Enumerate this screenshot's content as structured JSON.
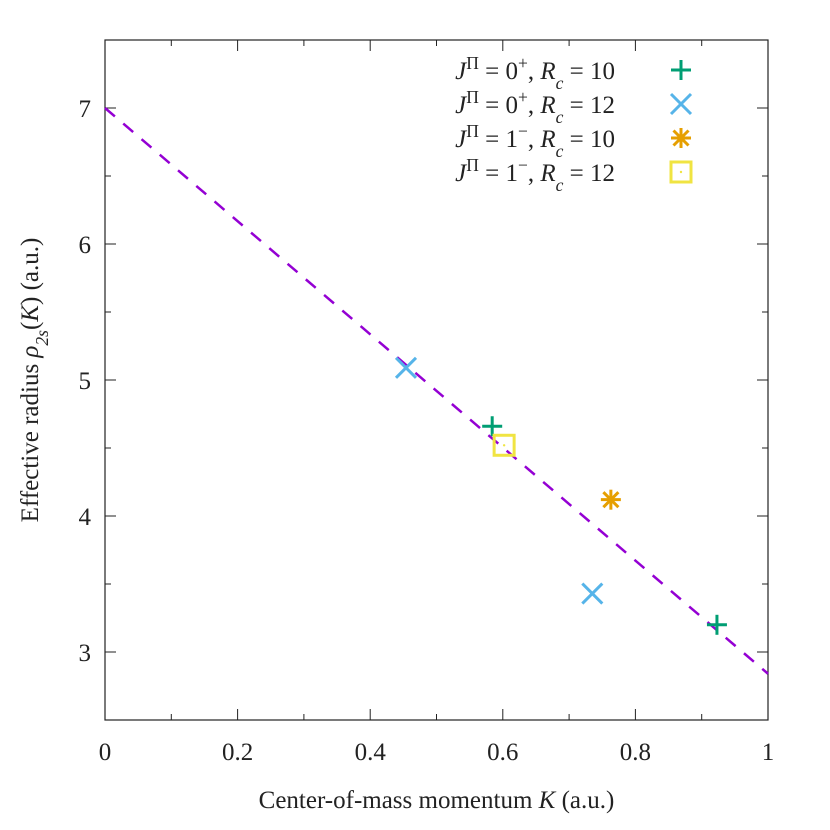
{
  "chart_data": {
    "type": "scatter",
    "xlabel": "Center-of-mass momentum K (a.u.)",
    "xlabel_parts": [
      [
        "Center-of-mass momentum ",
        ""
      ],
      [
        "K",
        "i"
      ],
      [
        " (a.u.)",
        ""
      ]
    ],
    "ylabel": "Effective radius ρ2s(K) (a.u.)",
    "ylabel_parts": [
      [
        "Effective radius ",
        ""
      ],
      [
        "ρ",
        "i"
      ],
      [
        "2s",
        "sub"
      ],
      [
        "(",
        ""
      ],
      [
        "K",
        "i"
      ],
      [
        ") (a.u.)",
        ""
      ]
    ],
    "xlim": [
      0,
      1
    ],
    "ylim": [
      2.5,
      7.5
    ],
    "xticks": [
      0,
      0.2,
      0.4,
      0.6,
      0.8,
      1
    ],
    "xtick_labels": [
      "0",
      "0.2",
      "0.4",
      "0.6",
      "0.8",
      "1"
    ],
    "yticks": [
      3,
      4,
      5,
      6,
      7
    ],
    "ytick_labels": [
      "3",
      "4",
      "5",
      "6",
      "7"
    ],
    "grid": false,
    "legend_position": "top-right",
    "series": [
      {
        "name": "JΠ = 0+, Rc = 10",
        "label_parts": [
          [
            "J",
            "i"
          ],
          [
            "Π",
            "sup"
          ],
          [
            " = 0",
            ""
          ],
          [
            "+",
            "sup"
          ],
          [
            ", ",
            ""
          ],
          [
            "R",
            "i"
          ],
          [
            "c",
            "sub"
          ],
          [
            " = 10",
            ""
          ]
        ],
        "marker": "plus",
        "color": "#009e73",
        "points": [
          [
            0.584,
            4.66
          ],
          [
            0.923,
            3.2
          ]
        ]
      },
      {
        "name": "JΠ = 0+, Rc = 12",
        "label_parts": [
          [
            "J",
            "i"
          ],
          [
            "Π",
            "sup"
          ],
          [
            " = 0",
            ""
          ],
          [
            "+",
            "sup"
          ],
          [
            ", ",
            ""
          ],
          [
            "R",
            "i"
          ],
          [
            "c",
            "sub"
          ],
          [
            " = 12",
            ""
          ]
        ],
        "marker": "cross",
        "color": "#56b4e9",
        "points": [
          [
            0.454,
            5.09
          ],
          [
            0.735,
            3.43
          ]
        ]
      },
      {
        "name": "JΠ = 1−, Rc = 10",
        "label_parts": [
          [
            "J",
            "i"
          ],
          [
            "Π",
            "sup"
          ],
          [
            " = 1",
            ""
          ],
          [
            "−",
            "sup"
          ],
          [
            ", ",
            ""
          ],
          [
            "R",
            "i"
          ],
          [
            "c",
            "sub"
          ],
          [
            " = 10",
            ""
          ]
        ],
        "marker": "star",
        "color": "#e69f00",
        "points": [
          [
            0.763,
            4.12
          ]
        ]
      },
      {
        "name": "JΠ = 1−, Rc = 12",
        "label_parts": [
          [
            "J",
            "i"
          ],
          [
            "Π",
            "sup"
          ],
          [
            " = 1",
            ""
          ],
          [
            "−",
            "sup"
          ],
          [
            ", ",
            ""
          ],
          [
            "R",
            "i"
          ],
          [
            "c",
            "sub"
          ],
          [
            " = 12",
            ""
          ]
        ],
        "marker": "square",
        "color": "#f0e442",
        "points": [
          [
            0.602,
            4.52
          ]
        ]
      }
    ],
    "fit_line": {
      "style": "dashed",
      "color": "#9400d3",
      "x": [
        0,
        1
      ],
      "y": [
        7.0,
        2.84
      ]
    }
  }
}
